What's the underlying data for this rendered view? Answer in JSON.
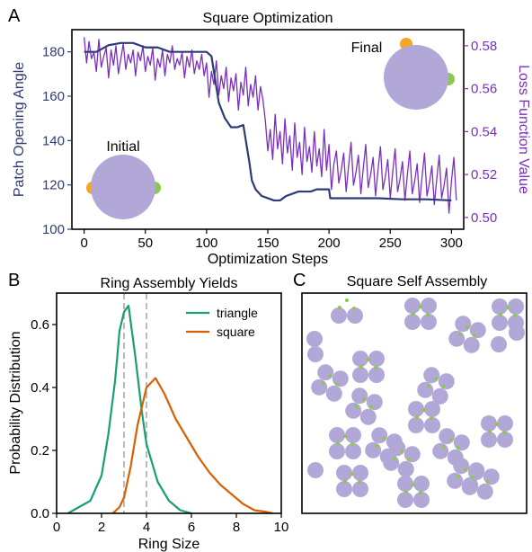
{
  "panel_labels": [
    "A",
    "B",
    "C"
  ],
  "chart_data": [
    {
      "id": "A",
      "type": "line",
      "title": "Square Optimization",
      "xlabel": "Optimization Steps",
      "ylabel": "Patch Opening Angle",
      "y2label": "Loss Function Value",
      "xlim": [
        -10,
        310
      ],
      "ylim": [
        100,
        190
      ],
      "y2lim": [
        0.4945,
        0.5875
      ],
      "xticks": [
        0,
        50,
        100,
        150,
        200,
        250,
        300
      ],
      "yticks": [
        100,
        120,
        140,
        160,
        180
      ],
      "y2ticks": [
        0.5,
        0.52,
        0.54,
        0.56,
        0.58
      ],
      "colors": {
        "angle": "#2f3a78",
        "loss": "#7b2fc0"
      },
      "annotations": [
        "Initial",
        "Final"
      ],
      "series": [
        {
          "axis": "left",
          "x": [
            0,
            10,
            20,
            30,
            40,
            50,
            60,
            70,
            80,
            90,
            100,
            104,
            110,
            115,
            120,
            125,
            130,
            135,
            137,
            140,
            145,
            150,
            155,
            160,
            165,
            170,
            175,
            180,
            185,
            190,
            195,
            200,
            201,
            205,
            210,
            220,
            240,
            260,
            280,
            300
          ],
          "y": [
            180,
            180,
            183,
            184,
            184,
            182,
            182,
            180,
            180,
            180,
            180,
            178,
            157,
            150,
            146,
            146,
            147,
            130,
            122,
            118,
            115,
            114,
            113,
            113,
            115,
            116,
            117,
            117,
            117,
            118,
            118,
            118,
            114,
            114,
            114,
            114,
            114,
            113.5,
            113.5,
            113
          ]
        },
        {
          "axis": "right",
          "x_start": 0,
          "x_step": 2,
          "y": [
            0.584,
            0.572,
            0.582,
            0.574,
            0.577,
            0.568,
            0.583,
            0.57,
            0.575,
            0.579,
            0.565,
            0.578,
            0.571,
            0.58,
            0.567,
            0.574,
            0.581,
            0.569,
            0.576,
            0.572,
            0.578,
            0.566,
            0.577,
            0.573,
            0.58,
            0.568,
            0.575,
            0.571,
            0.579,
            0.564,
            0.574,
            0.57,
            0.578,
            0.566,
            0.576,
            0.572,
            0.58,
            0.569,
            0.574,
            0.571,
            0.577,
            0.565,
            0.575,
            0.57,
            0.578,
            0.567,
            0.573,
            0.569,
            0.576,
            0.566,
            0.572,
            0.556,
            0.568,
            0.562,
            0.573,
            0.557,
            0.566,
            0.56,
            0.57,
            0.554,
            0.565,
            0.559,
            0.567,
            0.55,
            0.563,
            0.557,
            0.57,
            0.552,
            0.562,
            0.556,
            0.566,
            0.55,
            0.561,
            0.555,
            0.545,
            0.531,
            0.541,
            0.527,
            0.548,
            0.532,
            0.54,
            0.525,
            0.546,
            0.53,
            0.538,
            0.522,
            0.544,
            0.528,
            0.535,
            0.52,
            0.542,
            0.526,
            0.533,
            0.521,
            0.54,
            0.524,
            0.532,
            0.519,
            0.541,
            0.522,
            0.534,
            0.513,
            0.525,
            0.531,
            0.516,
            0.522,
            0.53,
            0.512,
            0.524,
            0.535,
            0.515,
            0.521,
            0.529,
            0.511,
            0.523,
            0.534,
            0.514,
            0.52,
            0.528,
            0.51,
            0.522,
            0.533,
            0.513,
            0.519,
            0.527,
            0.509,
            0.521,
            0.532,
            0.512,
            0.518,
            0.526,
            0.508,
            0.52,
            0.531,
            0.511,
            0.517,
            0.525,
            0.507,
            0.519,
            0.53,
            0.51,
            0.516,
            0.524,
            0.506,
            0.518,
            0.529,
            0.509,
            0.515,
            0.523,
            0.502,
            0.517,
            0.528,
            0.508
          ]
        }
      ]
    },
    {
      "id": "B",
      "type": "line",
      "title": "Ring Assembly Yields",
      "xlabel": "Ring Size",
      "ylabel": "Probability Distribution",
      "xlim": [
        0,
        10
      ],
      "ylim": [
        0,
        0.7
      ],
      "xticks": [
        0,
        2,
        4,
        6,
        8,
        10
      ],
      "yticks": [
        0.0,
        0.2,
        0.4,
        0.6
      ],
      "vlines": [
        3,
        4
      ],
      "legend": "top-right",
      "series": [
        {
          "name": "triangle",
          "color": "#1a9e77",
          "x": [
            0.5,
            1.0,
            1.5,
            2.0,
            2.3,
            2.6,
            2.8,
            3.0,
            3.2,
            3.5,
            3.8,
            4.0,
            4.5,
            5.0,
            5.5,
            6.0
          ],
          "y": [
            0.0,
            0.02,
            0.04,
            0.12,
            0.25,
            0.42,
            0.58,
            0.64,
            0.66,
            0.5,
            0.32,
            0.22,
            0.1,
            0.04,
            0.01,
            0.0
          ]
        },
        {
          "name": "square",
          "color": "#d95f02",
          "x": [
            2.5,
            2.8,
            3.0,
            3.3,
            3.6,
            4.0,
            4.4,
            4.8,
            5.3,
            5.8,
            6.3,
            6.8,
            7.3,
            7.8,
            8.3,
            8.8,
            9.3,
            9.6
          ],
          "y": [
            0.0,
            0.02,
            0.05,
            0.15,
            0.28,
            0.4,
            0.43,
            0.38,
            0.3,
            0.24,
            0.18,
            0.13,
            0.09,
            0.06,
            0.03,
            0.01,
            0.005,
            0.0
          ]
        }
      ]
    },
    {
      "id": "C",
      "type": "scatter",
      "title": "Square Self Assembly",
      "particle_color": "#b1a8d8",
      "patch_color": "#8cc94a"
    }
  ]
}
